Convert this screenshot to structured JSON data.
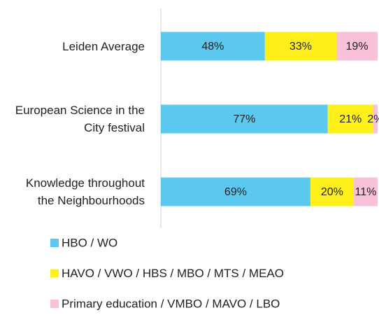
{
  "chart_data": {
    "type": "stacked_barh",
    "categories": [
      "Leiden Average",
      "European Science in the City festival",
      "Knowledge throughout the Neighbourhoods"
    ],
    "series": [
      {
        "name": "HBO / WO",
        "color": "#5bc8f0",
        "values": [
          48,
          77,
          69
        ],
        "value_labels": [
          "48%",
          "77%",
          "69%"
        ]
      },
      {
        "name": "HAVO / VWO / HBS / MBO / MTS / MEAO",
        "color": "#fff01a",
        "values": [
          33,
          21,
          20
        ],
        "value_labels": [
          "33%",
          "21%",
          "20%"
        ]
      },
      {
        "name": "Primary education / VMBO / MAVO / LBO",
        "color": "#f9c1d9",
        "values": [
          19,
          2,
          11
        ],
        "value_labels": [
          "19%",
          "2%",
          "11%"
        ]
      }
    ],
    "xlim": [
      0,
      100
    ],
    "legend": "bottom"
  }
}
